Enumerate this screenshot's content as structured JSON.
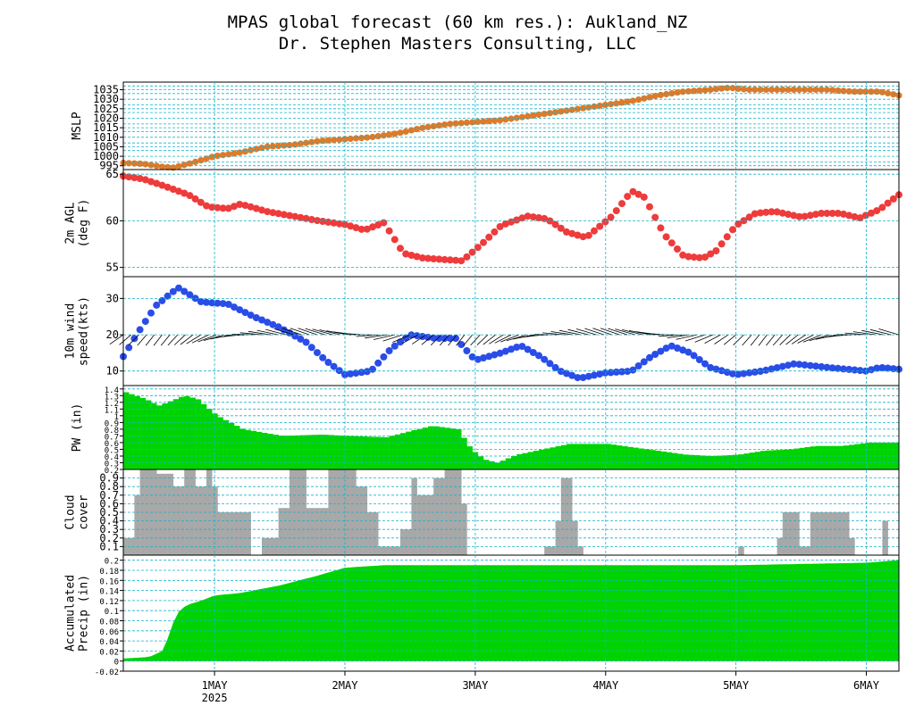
{
  "title_line1": "MPAS global forecast (60 km res.): Aukland_NZ",
  "title_line2": "Dr. Stephen Masters Consulting, LLC",
  "chart_data": [
    {
      "id": "mslp",
      "type": "scatter",
      "ylabel": [
        "MSLP"
      ],
      "ylim": [
        993,
        1039
      ],
      "yticks": [
        995,
        1000,
        1005,
        1010,
        1015,
        1020,
        1025,
        1030,
        1035
      ],
      "gridlines": [
        993,
        995,
        997,
        1000,
        1003,
        1005,
        1007,
        1010,
        1013,
        1015,
        1017,
        1020,
        1023,
        1025,
        1027,
        1030,
        1033,
        1035,
        1037,
        1039
      ],
      "color": "#e07a28",
      "t": [
        0.3,
        0.45,
        0.6,
        0.68,
        0.8,
        1.0,
        1.2,
        1.4,
        1.6,
        1.8,
        2.0,
        2.2,
        2.4,
        2.6,
        2.8,
        3.0,
        3.2,
        3.4,
        3.6,
        3.8,
        4.0,
        4.2,
        4.4,
        4.6,
        4.8,
        4.95,
        5.1,
        5.3,
        5.5,
        5.7,
        5.9,
        6.1,
        6.25
      ],
      "values": [
        996.5,
        996,
        994.5,
        994,
        996,
        1000,
        1002,
        1005,
        1006,
        1008,
        1009,
        1010,
        1012,
        1015,
        1017,
        1018,
        1019,
        1021,
        1023,
        1025,
        1027,
        1029,
        1032,
        1034,
        1035,
        1036,
        1035,
        1035,
        1035,
        1035,
        1034,
        1034,
        1032
      ]
    },
    {
      "id": "t2m",
      "type": "scatter",
      "ylabel": [
        "2m AGL",
        "(deg F)"
      ],
      "ylim": [
        54,
        65.5
      ],
      "yticks": [
        55,
        60,
        65
      ],
      "gridlines": [
        55,
        60,
        65
      ],
      "color": "#ee3b3b",
      "t": [
        0.3,
        0.45,
        0.6,
        0.8,
        0.95,
        1.1,
        1.2,
        1.4,
        1.6,
        1.8,
        2.0,
        2.15,
        2.3,
        2.45,
        2.6,
        2.8,
        2.9,
        3.05,
        3.2,
        3.4,
        3.55,
        3.7,
        3.85,
        4.05,
        4.2,
        4.3,
        4.45,
        4.6,
        4.75,
        4.85,
        5.0,
        5.15,
        5.3,
        5.5,
        5.65,
        5.8,
        5.95,
        6.1,
        6.25
      ],
      "values": [
        64.8,
        64.5,
        63.8,
        62.8,
        61.5,
        61.3,
        61.8,
        61,
        60.5,
        60,
        59.6,
        59,
        59.8,
        56.5,
        56,
        55.8,
        55.7,
        57.5,
        59.5,
        60.5,
        60.2,
        58.8,
        58.2,
        60.5,
        63.2,
        62.5,
        58.5,
        56.2,
        56,
        56.8,
        59.5,
        60.8,
        61,
        60.4,
        60.8,
        60.8,
        60.3,
        61.2,
        62.8
      ]
    },
    {
      "id": "wind",
      "type": "scatter",
      "ylabel": [
        "10m wind",
        "speed(kts)"
      ],
      "ylim": [
        6,
        36
      ],
      "yticks": [
        10,
        20,
        30
      ],
      "gridlines": [
        10,
        20,
        30
      ],
      "color": "#2a4de8",
      "barb_color": "#000000",
      "t": [
        0.3,
        0.42,
        0.55,
        0.72,
        0.9,
        1.1,
        1.3,
        1.5,
        1.7,
        1.85,
        2.0,
        2.2,
        2.35,
        2.5,
        2.7,
        2.85,
        3.0,
        3.2,
        3.35,
        3.5,
        3.65,
        3.8,
        4.0,
        4.2,
        4.35,
        4.5,
        4.65,
        4.8,
        5.0,
        5.2,
        5.45,
        5.7,
        6.0,
        6.1,
        6.25
      ],
      "values": [
        14,
        21,
        28,
        33,
        29,
        28.5,
        25,
        22,
        18,
        13,
        9,
        10,
        16,
        20,
        19,
        19,
        13,
        15,
        17,
        14,
        10,
        8,
        9.5,
        10,
        14,
        17,
        15,
        11,
        9,
        10,
        12,
        11,
        10,
        11,
        10.5
      ]
    },
    {
      "id": "pw",
      "type": "bar",
      "ylabel": [
        "PW (in)"
      ],
      "ylim": [
        0.2,
        1.45
      ],
      "yticks": [
        0.2,
        0.3,
        0.4,
        0.5,
        0.6,
        0.7,
        0.8,
        0.9,
        1,
        1.1,
        1.2,
        1.3,
        1.4
      ],
      "gridlines": [
        0.2,
        0.3,
        0.4,
        0.5,
        0.6,
        0.7,
        0.8,
        0.9,
        1,
        1.1,
        1.2,
        1.3,
        1.4
      ],
      "color": "#00d400",
      "t": [
        0.3,
        0.45,
        0.55,
        0.62,
        0.75,
        0.85,
        1.0,
        1.2,
        1.5,
        1.8,
        2.0,
        2.3,
        2.5,
        2.65,
        2.85,
        2.95,
        3.05,
        3.15,
        3.3,
        3.5,
        3.7,
        4.0,
        4.3,
        4.6,
        4.8,
        5.0,
        5.2,
        5.4,
        5.6,
        5.8,
        6.0,
        6.25
      ],
      "values": [
        1.35,
        1.25,
        1.15,
        1.2,
        1.3,
        1.25,
        1.0,
        0.8,
        0.7,
        0.72,
        0.7,
        0.68,
        0.78,
        0.85,
        0.8,
        0.5,
        0.35,
        0.3,
        0.42,
        0.5,
        0.58,
        0.58,
        0.5,
        0.42,
        0.4,
        0.42,
        0.48,
        0.5,
        0.55,
        0.55,
        0.6,
        0.6
      ]
    },
    {
      "id": "cloud",
      "type": "bar",
      "ylabel": [
        "Cloud",
        "cover"
      ],
      "ylim": [
        0,
        1
      ],
      "yticks": [
        0.1,
        0.2,
        0.3,
        0.4,
        0.5,
        0.6,
        0.7,
        0.8,
        0.9
      ],
      "gridlines": [
        0.1,
        0.2,
        0.3,
        0.4,
        0.5,
        0.6,
        0.7,
        0.8,
        0.9
      ],
      "color": "#a8a8a8",
      "t": [
        0.3,
        0.35,
        0.42,
        0.5,
        0.55,
        0.65,
        0.75,
        0.85,
        0.9,
        0.95,
        1.0,
        1.05,
        1.1,
        1.15,
        1.25,
        1.35,
        1.45,
        1.55,
        1.7,
        1.85,
        1.95,
        2.05,
        2.15,
        2.25,
        2.4,
        2.5,
        2.55,
        2.65,
        2.75,
        2.85,
        3.5,
        3.6,
        3.65,
        3.7,
        3.75,
        5.0,
        5.3,
        5.35,
        5.45,
        5.55,
        5.65,
        5.75,
        5.85,
        6.1
      ],
      "values": [
        0.2,
        0.7,
        1,
        1,
        0.95,
        0.8,
        1,
        0.8,
        1,
        0.8,
        0.5,
        0.5,
        0.5,
        0.5,
        0,
        0.2,
        0.55,
        1,
        0.55,
        1,
        1,
        0.8,
        0.5,
        0.1,
        0.3,
        0.9,
        0.7,
        0.9,
        1,
        0.6,
        0.1,
        0.4,
        0.9,
        0.4,
        0.1,
        0.1,
        0.2,
        0.5,
        0.1,
        0.5,
        0.5,
        0.5,
        0.2,
        0.4
      ]
    },
    {
      "id": "precip",
      "type": "area",
      "ylabel": [
        "Accumulated",
        "Precip (in)"
      ],
      "ylim": [
        -0.02,
        0.21
      ],
      "yticks": [
        -0.02,
        0,
        0.02,
        0.04,
        0.06,
        0.08,
        0.1,
        0.12,
        0.14,
        0.16,
        0.18,
        0.2
      ],
      "gridlines": [
        0,
        0.02,
        0.04,
        0.06,
        0.08,
        0.1,
        0.12,
        0.14,
        0.16,
        0.18,
        0.2
      ],
      "color": "#00d400",
      "t": [
        0.3,
        0.5,
        0.6,
        0.65,
        0.7,
        0.75,
        0.8,
        0.9,
        1.0,
        1.2,
        1.5,
        1.8,
        2.0,
        2.3,
        3.0,
        4.0,
        5.0,
        6.0,
        6.25
      ],
      "values": [
        0.005,
        0.008,
        0.02,
        0.05,
        0.09,
        0.105,
        0.112,
        0.12,
        0.13,
        0.135,
        0.15,
        0.17,
        0.185,
        0.19,
        0.19,
        0.19,
        0.19,
        0.195,
        0.2
      ]
    }
  ],
  "xaxis": {
    "xlim": [
      0.3,
      6.25
    ],
    "ticks": [
      {
        "t": 1,
        "label": "1MAY",
        "sub": "2025"
      },
      {
        "t": 2,
        "label": "2MAY",
        "sub": ""
      },
      {
        "t": 3,
        "label": "3MAY",
        "sub": ""
      },
      {
        "t": 4,
        "label": "4MAY",
        "sub": ""
      },
      {
        "t": 5,
        "label": "5MAY",
        "sub": ""
      },
      {
        "t": 6,
        "label": "6MAY",
        "sub": ""
      }
    ]
  }
}
